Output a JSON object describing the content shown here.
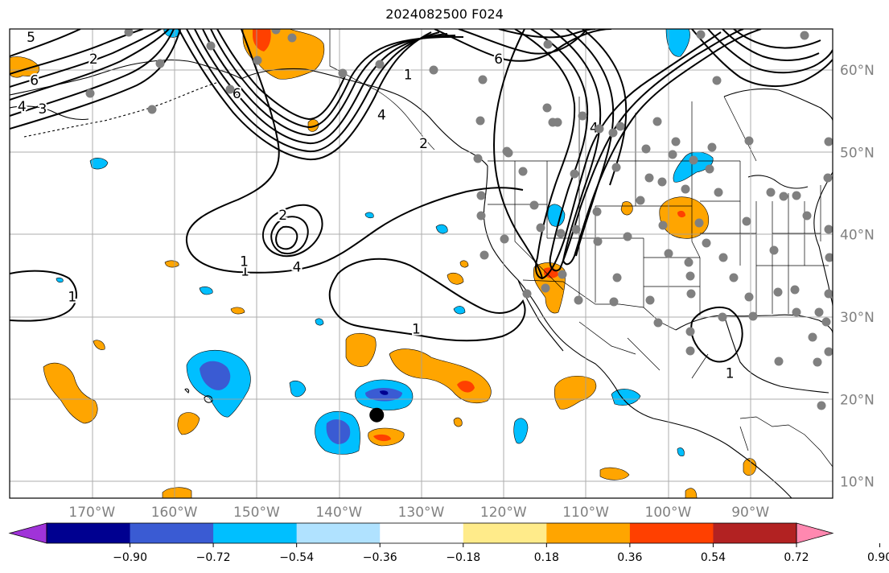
{
  "title": "2024082500 F024",
  "map": {
    "lon_range": [
      -180,
      -80
    ],
    "lat_range": [
      8,
      65
    ],
    "lon_ticks": [
      {
        "lon": -170,
        "label": "170°W"
      },
      {
        "lon": -160,
        "label": "160°W"
      },
      {
        "lon": -150,
        "label": "150°W"
      },
      {
        "lon": -140,
        "label": "140°W"
      },
      {
        "lon": -130,
        "label": "130°W"
      },
      {
        "lon": -120,
        "label": "120°W"
      },
      {
        "lon": -110,
        "label": "110°W"
      },
      {
        "lon": -100,
        "label": "100°W"
      },
      {
        "lon": -90,
        "label": "90°W"
      }
    ],
    "lat_ticks": [
      {
        "lat": 60,
        "label": "60°N"
      },
      {
        "lat": 50,
        "label": "50°N"
      },
      {
        "lat": 40,
        "label": "40°N"
      },
      {
        "lat": 30,
        "label": "30°N"
      },
      {
        "lat": 20,
        "label": "20°N"
      },
      {
        "lat": 10,
        "label": "10°N"
      }
    ],
    "grid": true,
    "storm_center": {
      "lon": -135.4,
      "lat": 18.1
    }
  },
  "contour_labels": [
    {
      "text": "5",
      "lon": -177.4,
      "lat": 64.0
    },
    {
      "text": "2",
      "lon": -169.8,
      "lat": 61.4
    },
    {
      "text": "6",
      "lon": -177.0,
      "lat": 58.8
    },
    {
      "text": "4",
      "lon": -178.5,
      "lat": 55.6
    },
    {
      "text": "3",
      "lon": -176.0,
      "lat": 55.3
    },
    {
      "text": "6",
      "lon": -152.4,
      "lat": 57.2
    },
    {
      "text": "4",
      "lon": -134.8,
      "lat": 54.6
    },
    {
      "text": "1",
      "lon": -131.6,
      "lat": 59.5
    },
    {
      "text": "6",
      "lon": -120.6,
      "lat": 61.4
    },
    {
      "text": "2",
      "lon": -129.7,
      "lat": 51.1
    },
    {
      "text": "4",
      "lon": -109.0,
      "lat": 53.0
    },
    {
      "text": "2",
      "lon": -146.8,
      "lat": 42.4
    },
    {
      "text": "4",
      "lon": -145.1,
      "lat": 36.1
    },
    {
      "text": "1",
      "lon": -151.4,
      "lat": 35.6
    },
    {
      "text": "1",
      "lon": -151.5,
      "lat": 36.8
    },
    {
      "text": "1",
      "lon": -172.4,
      "lat": 32.5
    },
    {
      "text": "1",
      "lon": -130.6,
      "lat": 28.6
    },
    {
      "text": "1",
      "lon": -92.5,
      "lat": 23.2
    }
  ],
  "colorbar": {
    "ticks": [
      "−0.90",
      "−0.72",
      "−0.54",
      "−0.36",
      "−0.18",
      "0.18",
      "0.36",
      "0.54",
      "0.72",
      "0.90"
    ],
    "colors": [
      "#a033d9",
      "#000090",
      "#3a5bd3",
      "#00bfff",
      "#b0e2ff",
      "#ffffff",
      "#ffeb8a",
      "#ffa500",
      "#ff4000",
      "#b22222",
      "#ff88b0"
    ]
  },
  "fill_colors": {
    "orange": "#ffa500",
    "red_orange": "#ff4000",
    "sky": "#00bfff",
    "royal": "#3a5bd3",
    "navy": "#000090"
  }
}
